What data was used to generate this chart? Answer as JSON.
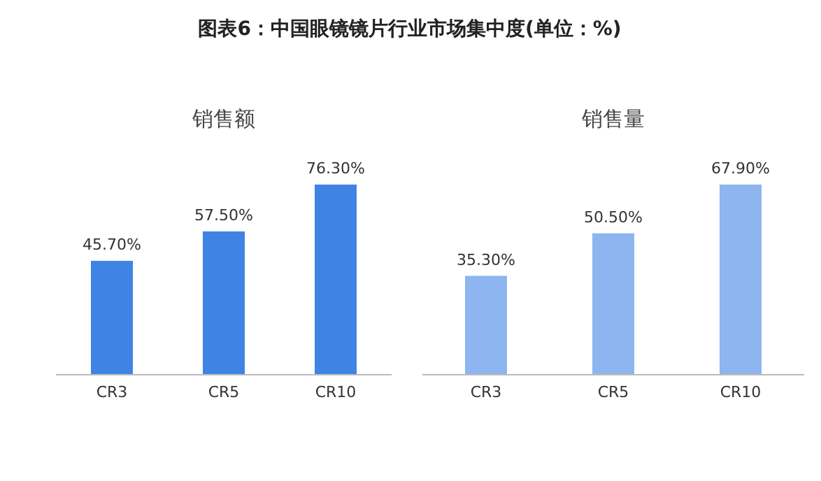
{
  "chart_data": [
    {
      "type": "bar",
      "title": "图表6：中国眼镜镜片行业市场集中度(单位：%)",
      "subtitle": "销售额",
      "categories": [
        "CR3",
        "CR5",
        "CR10"
      ],
      "series": [
        {
          "color": "#3f84e5",
          "values": [
            45.7,
            57.5,
            76.3
          ],
          "value_labels": [
            "45.70%",
            "57.50%",
            "76.30%"
          ]
        }
      ]
    },
    {
      "type": "bar",
      "subtitle": "销售量",
      "categories": [
        "CR3",
        "CR5",
        "CR10"
      ],
      "series": [
        {
          "color": "#8db5ef",
          "values": [
            35.3,
            50.5,
            67.9
          ],
          "value_labels": [
            "35.30%",
            "50.50%",
            "67.90%"
          ]
        }
      ]
    }
  ]
}
